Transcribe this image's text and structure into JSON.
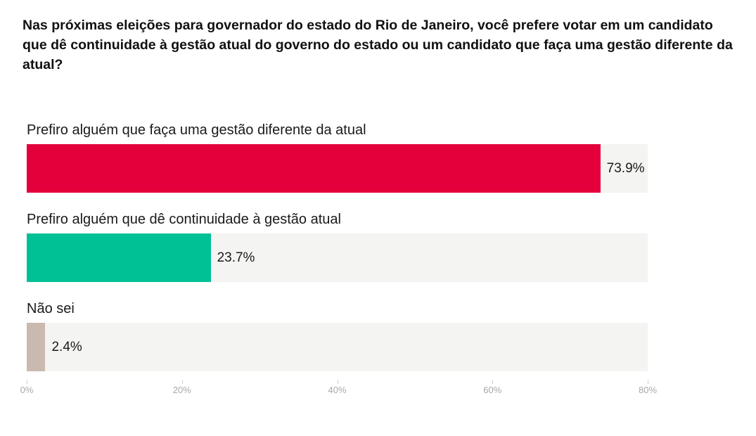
{
  "chart_data": {
    "type": "bar",
    "orientation": "horizontal",
    "title": "Nas próximas eleições para governador do estado do Rio de Janeiro, você prefere votar em um candidato que dê continuidade à gestão atual do governo do estado ou um candidato que faça uma gestão diferente da atual?",
    "categories": [
      "Prefiro alguém que faça uma gestão diferente da atual",
      "Prefiro alguém que dê continuidade à gestão atual",
      "Não sei"
    ],
    "values": [
      73.9,
      23.7,
      2.4
    ],
    "value_labels": [
      "73.9%",
      "23.7%",
      "2.4%"
    ],
    "colors": [
      "#e4003b",
      "#00c096",
      "#c9b9af"
    ],
    "xlim": [
      0,
      80
    ],
    "ticks": [
      0,
      20,
      40,
      60,
      80
    ],
    "tick_labels": [
      "0%",
      "20%",
      "40%",
      "60%",
      "80%"
    ],
    "xlabel": "",
    "ylabel": ""
  }
}
